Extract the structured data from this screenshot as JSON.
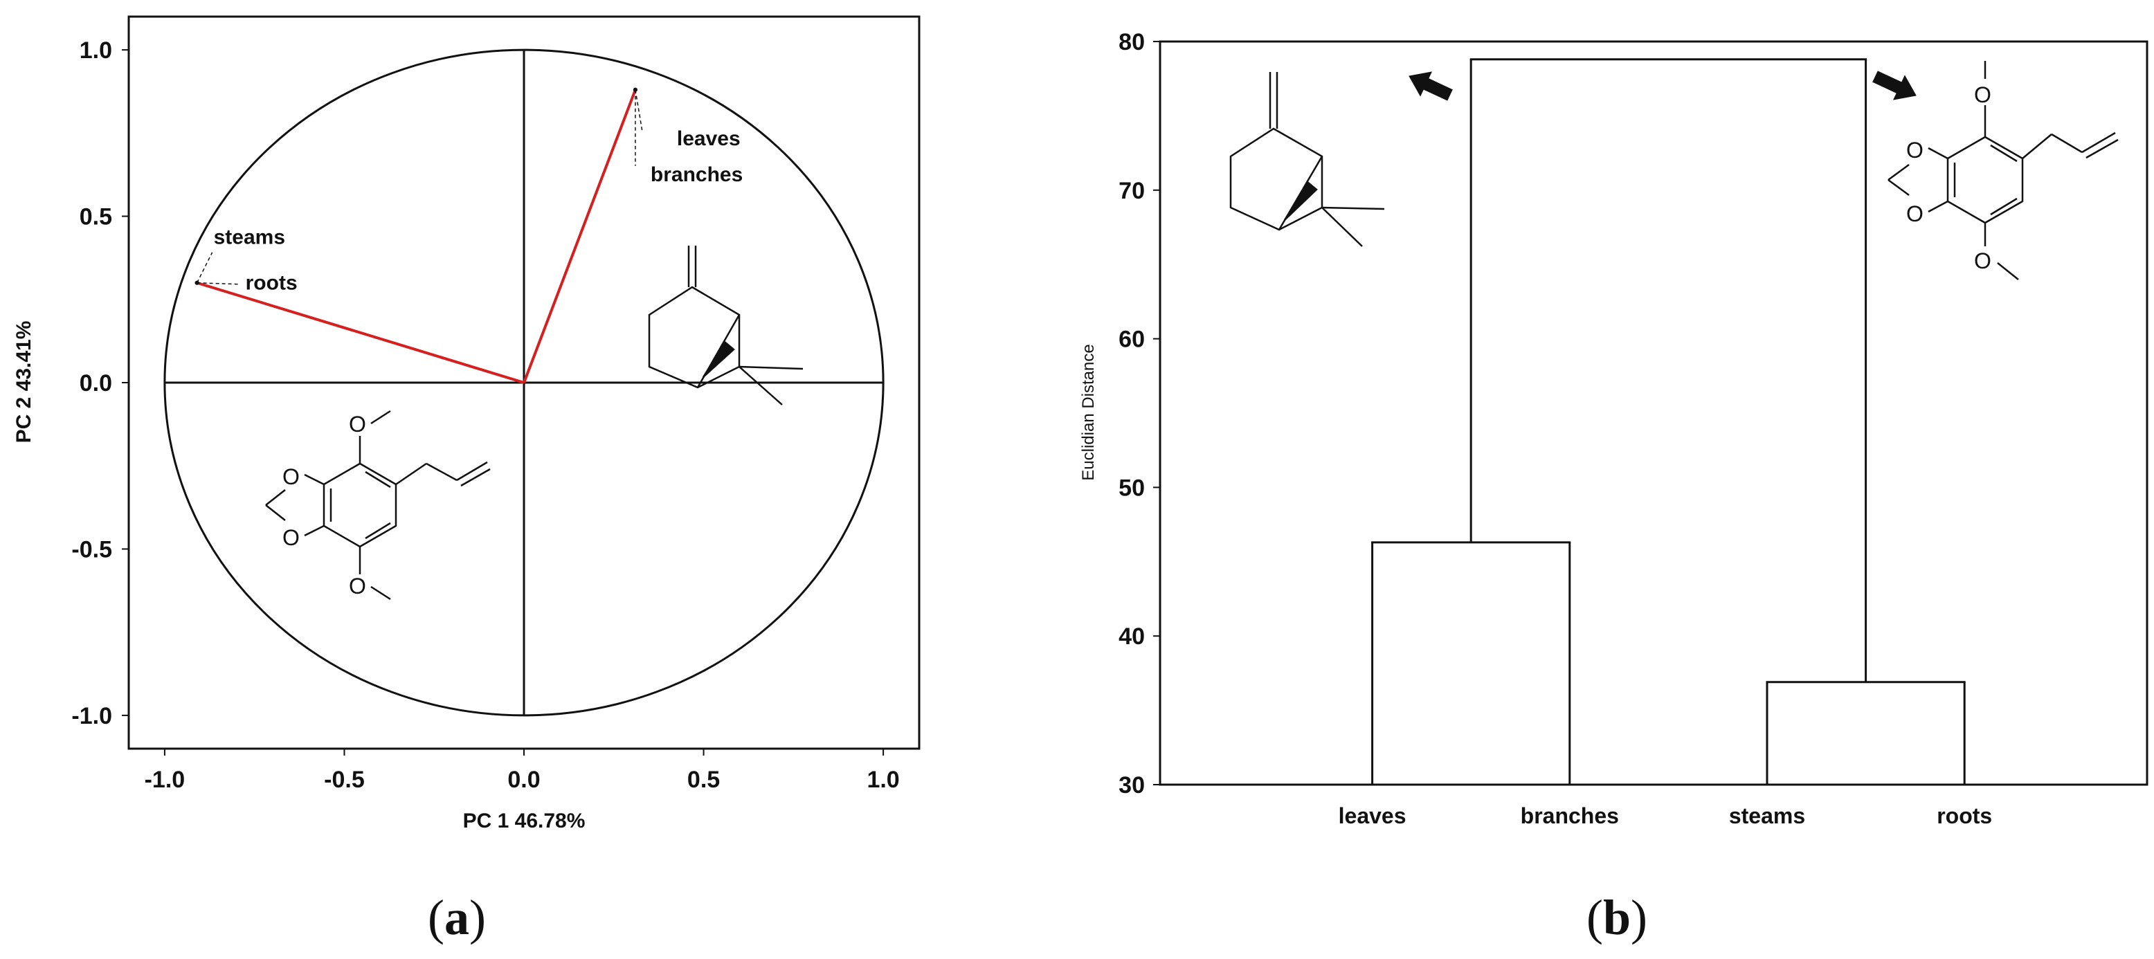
{
  "chart_data": [
    {
      "type": "scatter",
      "subtype": "pca-loading-circle",
      "xlabel": "PC 1  46.78%",
      "ylabel": "PC 2     43.41%",
      "xlim": [
        -1.1,
        1.1
      ],
      "ylim": [
        -1.1,
        1.1
      ],
      "x_ticks": [
        "-1.0",
        "-0.5",
        "0.0",
        "0.5",
        "1.0"
      ],
      "y_ticks": [
        "-1.0",
        "-0.5",
        "0.0",
        "0.5",
        "1.0"
      ],
      "unit_circle": true,
      "vector_color": "#d62020",
      "points": [
        {
          "name": "leaves",
          "x": 0.31,
          "y": 0.88
        },
        {
          "name": "branches",
          "x": 0.31,
          "y": 0.88
        },
        {
          "name": "steams",
          "x": -0.91,
          "y": 0.3
        },
        {
          "name": "roots",
          "x": -0.91,
          "y": 0.3
        }
      ],
      "panel_label": "(a)"
    },
    {
      "type": "dendrogram",
      "ylabel": "Euclidian Distance",
      "ylim": [
        30,
        80
      ],
      "y_ticks": [
        "30",
        "40",
        "50",
        "60",
        "70",
        "80"
      ],
      "leaves": [
        "leaves",
        "branches",
        "steams",
        "roots"
      ],
      "merges": [
        {
          "left": "leaves",
          "right": "branches",
          "height": 46.3
        },
        {
          "left": "steams",
          "right": "roots",
          "height": 36.9
        },
        {
          "left": "leaves+branches",
          "right": "steams+roots",
          "height": 78.8
        }
      ],
      "panel_label": "(b)"
    }
  ],
  "icons": {
    "pca_molecule_upper": "beta-pinene-structure-icon",
    "pca_molecule_lower": "dillapiole-structure-icon",
    "dendro_molecule_left": "beta-pinene-structure-icon",
    "dendro_molecule_right": "dillapiole-structure-icon",
    "arrow_left": "arrow-left-icon",
    "arrow_right": "arrow-right-icon"
  }
}
